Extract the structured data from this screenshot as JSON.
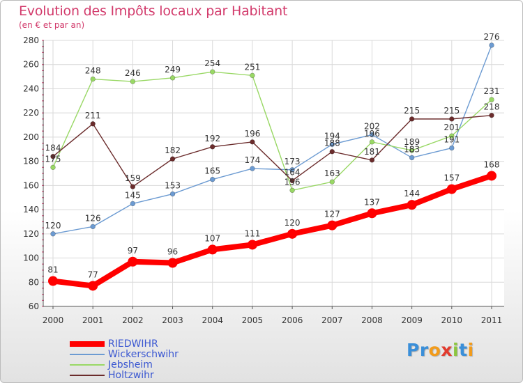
{
  "chart_data": {
    "type": "line",
    "title": "Evolution des Impôts locaux par Habitant",
    "subtitle": "(en € et par an)",
    "x": [
      "2000",
      "2001",
      "2002",
      "2003",
      "2004",
      "2005",
      "2006",
      "2007",
      "2008",
      "2009",
      "2010",
      "2011"
    ],
    "ylim": [
      60,
      280
    ],
    "yticks": [
      "60",
      "80",
      "100",
      "120",
      "140",
      "160",
      "180",
      "200",
      "220",
      "240",
      "260",
      "280"
    ],
    "grid": true,
    "legend": "bottom-left",
    "series": [
      {
        "name": "RIEDWIHR",
        "color": "#ff0000",
        "emphasis": true,
        "values": [
          81,
          77,
          97,
          96,
          107,
          111,
          120,
          127,
          137,
          144,
          157,
          168
        ]
      },
      {
        "name": "Wickerschwihr",
        "color": "#6c9bd2",
        "values": [
          120,
          126,
          145,
          153,
          165,
          174,
          173,
          194,
          202,
          183,
          191,
          276
        ],
        "labels": [
          "120",
          "126",
          "145",
          "153",
          "165",
          "174",
          "173",
          "194",
          "202",
          "183",
          "191",
          "276"
        ]
      },
      {
        "name": "Jebsheim",
        "color": "#99d865",
        "values": [
          175,
          248,
          246,
          249,
          254,
          251,
          156,
          163,
          196,
          189,
          201,
          231
        ],
        "labels": [
          "175",
          "248",
          "246",
          "249",
          "254",
          "251",
          "156",
          "163",
          "196",
          "189",
          "201",
          "231"
        ]
      },
      {
        "name": "Holtzwihr",
        "color": "#6b2c2c",
        "values": [
          184,
          211,
          159,
          182,
          192,
          196,
          164,
          188,
          181,
          215,
          215,
          218
        ],
        "labels": [
          "184",
          "211",
          "159",
          "182",
          "192",
          "196",
          "164",
          "188",
          "181",
          "215",
          "215",
          "218"
        ]
      }
    ],
    "red_labels": [
      "81",
      "77",
      "97",
      "96",
      "107",
      "111",
      "120",
      "127",
      "137",
      "144",
      "157",
      "168"
    ]
  },
  "logo": {
    "letters": [
      "P",
      "r",
      "o",
      "x",
      "i",
      "t",
      "i"
    ],
    "colors": [
      "#3a8fd9",
      "#3a8fd9",
      "#f29b1a",
      "#e23b2e",
      "#8cc63f",
      "#3a8fd9",
      "#f29b1a"
    ]
  }
}
